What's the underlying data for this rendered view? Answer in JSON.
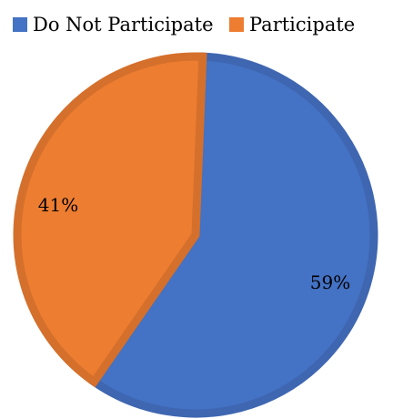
{
  "chart_data": {
    "type": "pie",
    "legend_position": "top",
    "slices": [
      {
        "name": "Do Not Participate",
        "value": 59,
        "label": "59%",
        "color": "#4472C4",
        "border": "#3F66B0"
      },
      {
        "name": "Participate",
        "value": 41,
        "label": "41%",
        "color": "#ED7D31",
        "border": "#D4702C"
      }
    ]
  }
}
